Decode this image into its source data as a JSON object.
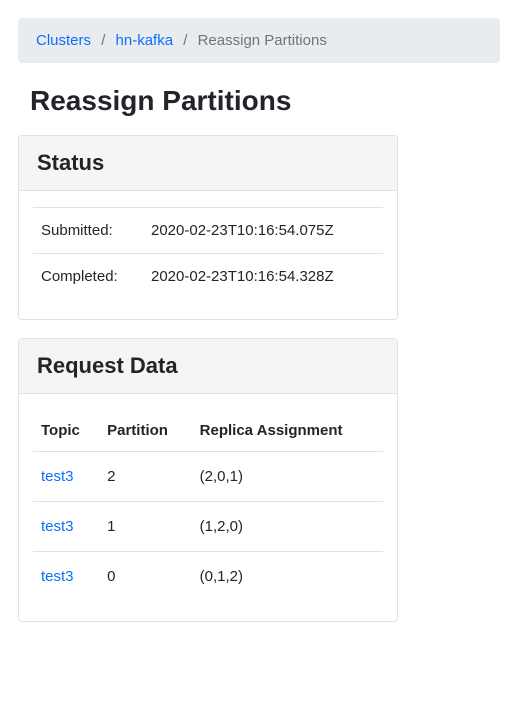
{
  "breadcrumb": {
    "items": [
      {
        "label": "Clusters",
        "link": true
      },
      {
        "label": "hn-kafka",
        "link": true
      },
      {
        "label": "Reassign Partitions",
        "link": false
      }
    ]
  },
  "page": {
    "title": "Reassign Partitions"
  },
  "status_panel": {
    "title": "Status",
    "rows": [
      {
        "label": "Submitted:",
        "value": "2020-02-23T10:16:54.075Z"
      },
      {
        "label": "Completed:",
        "value": "2020-02-23T10:16:54.328Z"
      }
    ]
  },
  "request_panel": {
    "title": "Request Data",
    "columns": [
      "Topic",
      "Partition",
      "Replica Assignment"
    ],
    "rows": [
      {
        "topic": "test3",
        "partition": "2",
        "replica": "(2,0,1)"
      },
      {
        "topic": "test3",
        "partition": "1",
        "replica": "(1,2,0)"
      },
      {
        "topic": "test3",
        "partition": "0",
        "replica": "(0,1,2)"
      }
    ]
  }
}
